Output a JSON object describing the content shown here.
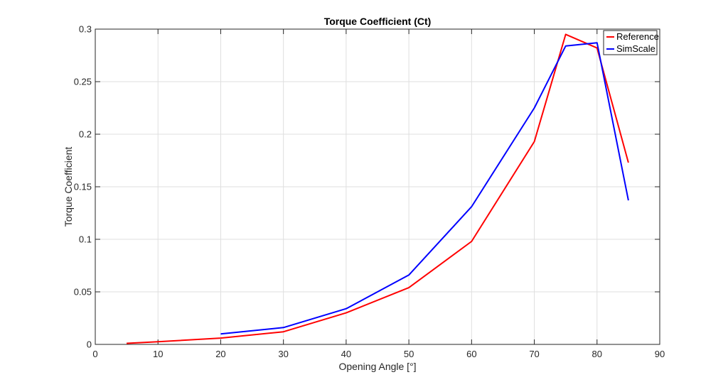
{
  "chart_data": {
    "type": "line",
    "title": "Torque Coefficient (Ct)",
    "xlabel": "Opening Angle [°]",
    "ylabel": "Torque Coefficient",
    "xlim": [
      0,
      90
    ],
    "ylim": [
      0,
      0.3
    ],
    "x_ticks": [
      0,
      10,
      20,
      30,
      40,
      50,
      60,
      70,
      80,
      90
    ],
    "x_tick_labels": [
      "0",
      "10",
      "20",
      "30",
      "40",
      "50",
      "60",
      "70",
      "80",
      "90"
    ],
    "y_ticks": [
      0,
      0.05,
      0.1,
      0.15,
      0.2,
      0.25,
      0.3
    ],
    "y_tick_labels": [
      "0",
      "0.05",
      "0.1",
      "0.15",
      "0.2",
      "0.25",
      "0.3"
    ],
    "grid": true,
    "legend_position": "top-right",
    "series": [
      {
        "name": "Reference",
        "color": "#ff0000",
        "x": [
          5,
          10,
          20,
          30,
          40,
          50,
          60,
          70,
          75,
          80,
          85
        ],
        "y": [
          0.001,
          0.0025,
          0.006,
          0.012,
          0.03,
          0.054,
          0.098,
          0.193,
          0.295,
          0.282,
          0.173
        ]
      },
      {
        "name": "SimScale",
        "color": "#0000ff",
        "x": [
          20,
          30,
          40,
          50,
          60,
          70,
          75,
          80,
          85
        ],
        "y": [
          0.01,
          0.016,
          0.034,
          0.066,
          0.131,
          0.225,
          0.284,
          0.287,
          0.137
        ]
      }
    ]
  }
}
